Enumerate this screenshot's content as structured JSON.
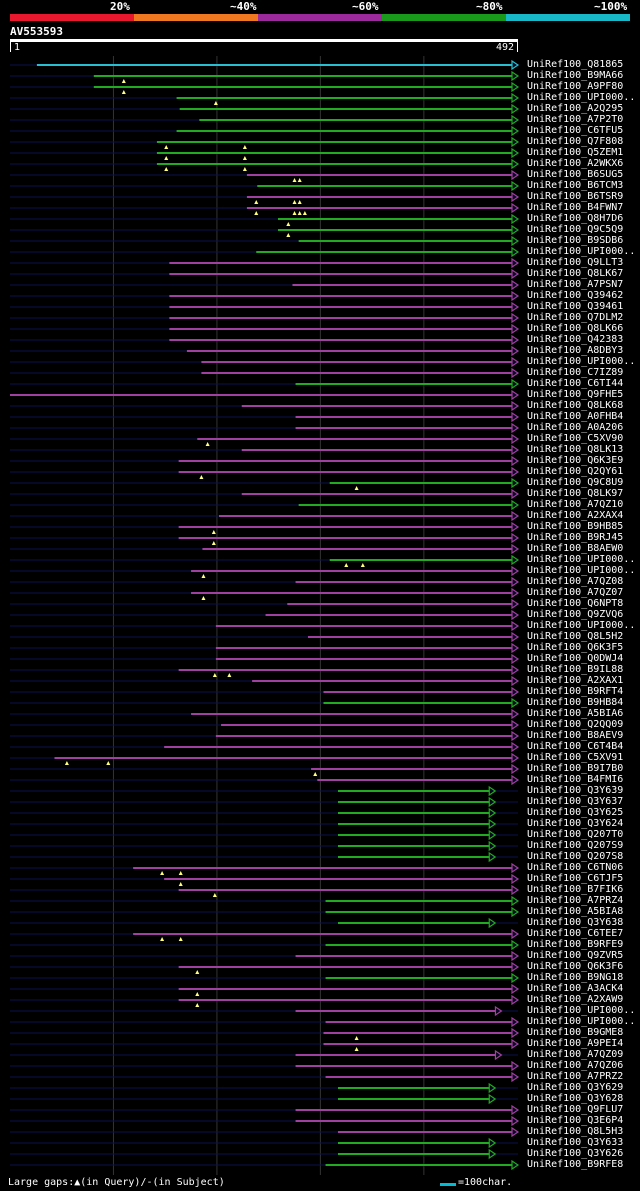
{
  "colors": {
    "background": "#000000",
    "legend": [
      "#e8182f",
      "#f07820",
      "#9c2a9c",
      "#1a9a1a",
      "#18b8c8"
    ],
    "purple": "#a040a0",
    "green": "#22aa22",
    "cyan": "#28c0d0",
    "navy": "#0c1050",
    "grid": "#333333"
  },
  "legend": {
    "labels": [
      "20%",
      "~40%",
      "~60%",
      "~80%",
      "~100%"
    ]
  },
  "query": {
    "id": "AV553593",
    "start": "1",
    "end": "492",
    "length": 492
  },
  "footer": {
    "text": "Large gaps:▲(in Query)/-(in Subject)",
    "scale_label": "=100char."
  },
  "hits": [
    {
      "name": "UniRef100_Q81865",
      "color": "cyan",
      "start": 27,
      "tri": []
    },
    {
      "name": "UniRef100_B9MA66",
      "color": "green",
      "start": 82,
      "tri": [
        111
      ]
    },
    {
      "name": "UniRef100_A9PF80",
      "color": "green",
      "start": 82,
      "tri": [
        111
      ]
    },
    {
      "name": "UniRef100_UPI000..",
      "color": "green",
      "start": 162,
      "tri": [
        200
      ]
    },
    {
      "name": "UniRef100_A2Q295",
      "color": "green",
      "start": 165,
      "tri": []
    },
    {
      "name": "UniRef100_A7P2T0",
      "color": "green",
      "start": 184,
      "tri": []
    },
    {
      "name": "UniRef100_C6TFU5",
      "color": "green",
      "start": 162,
      "tri": []
    },
    {
      "name": "UniRef100_Q7F808",
      "color": "green",
      "start": 143,
      "tri": [
        152,
        228
      ]
    },
    {
      "name": "UniRef100_Q5ZEM1",
      "color": "green",
      "start": 143,
      "tri": [
        152,
        228
      ]
    },
    {
      "name": "UniRef100_A2WKX6",
      "color": "green",
      "start": 143,
      "tri": [
        152,
        228
      ]
    },
    {
      "name": "UniRef100_B6SUG5",
      "color": "purple",
      "start": 230,
      "tri": [
        276,
        281
      ]
    },
    {
      "name": "UniRef100_B6TCM3",
      "color": "green",
      "start": 240,
      "tri": []
    },
    {
      "name": "UniRef100_B6TSR9",
      "color": "purple",
      "start": 230,
      "tri": [
        239,
        276,
        281
      ]
    },
    {
      "name": "UniRef100_B4FWN7",
      "color": "purple",
      "start": 230,
      "tri": [
        239,
        276,
        281,
        286
      ]
    },
    {
      "name": "UniRef100_Q8H7D6",
      "color": "green",
      "start": 260,
      "tri": [
        270
      ]
    },
    {
      "name": "UniRef100_Q9C5Q9",
      "color": "green",
      "start": 260,
      "tri": [
        270
      ]
    },
    {
      "name": "UniRef100_B9SDB6",
      "color": "green",
      "start": 280,
      "tri": []
    },
    {
      "name": "UniRef100_UPI000..",
      "color": "green",
      "start": 239,
      "tri": []
    },
    {
      "name": "UniRef100_Q9LLT3",
      "color": "purple",
      "start": 155,
      "tri": []
    },
    {
      "name": "UniRef100_Q8LK67",
      "color": "purple",
      "start": 155,
      "tri": []
    },
    {
      "name": "UniRef100_A7PSN7",
      "color": "purple",
      "start": 274,
      "tri": []
    },
    {
      "name": "UniRef100_Q39462",
      "color": "purple",
      "start": 155,
      "tri": []
    },
    {
      "name": "UniRef100_Q39461",
      "color": "purple",
      "start": 155,
      "tri": []
    },
    {
      "name": "UniRef100_Q7DLM2",
      "color": "purple",
      "start": 155,
      "tri": []
    },
    {
      "name": "UniRef100_Q8LK66",
      "color": "purple",
      "start": 155,
      "tri": []
    },
    {
      "name": "UniRef100_Q42383",
      "color": "purple",
      "start": 155,
      "tri": []
    },
    {
      "name": "UniRef100_A8DBY3",
      "color": "purple",
      "start": 172,
      "tri": []
    },
    {
      "name": "UniRef100_UPI000..",
      "color": "purple",
      "start": 186,
      "tri": []
    },
    {
      "name": "UniRef100_C7IZ89",
      "color": "purple",
      "start": 186,
      "tri": []
    },
    {
      "name": "UniRef100_C6TI44",
      "color": "green",
      "start": 277,
      "tri": []
    },
    {
      "name": "UniRef100_Q9FHE5",
      "color": "purple",
      "start": 1,
      "tri": []
    },
    {
      "name": "UniRef100_Q8LK68",
      "color": "purple",
      "start": 225,
      "tri": []
    },
    {
      "name": "UniRef100_A0FHB4",
      "color": "purple",
      "start": 277,
      "tri": []
    },
    {
      "name": "UniRef100_A0A206",
      "color": "purple",
      "start": 277,
      "tri": []
    },
    {
      "name": "UniRef100_C5XV90",
      "color": "purple",
      "start": 182,
      "tri": [
        192
      ]
    },
    {
      "name": "UniRef100_Q8LK13",
      "color": "purple",
      "start": 225,
      "tri": []
    },
    {
      "name": "UniRef100_Q6K3E9",
      "color": "purple",
      "start": 164,
      "tri": []
    },
    {
      "name": "UniRef100_Q2QY61",
      "color": "purple",
      "start": 164,
      "tri": [
        186
      ]
    },
    {
      "name": "UniRef100_Q9C8U9",
      "color": "green",
      "start": 310,
      "tri": [
        336
      ]
    },
    {
      "name": "UniRef100_Q8LK97",
      "color": "purple",
      "start": 225,
      "tri": []
    },
    {
      "name": "UniRef100_A7QZ10",
      "color": "green",
      "start": 280,
      "tri": []
    },
    {
      "name": "UniRef100_A2XAX4",
      "color": "purple",
      "start": 203,
      "tri": []
    },
    {
      "name": "UniRef100_B9HB85",
      "color": "purple",
      "start": 164,
      "tri": [
        198
      ]
    },
    {
      "name": "UniRef100_B9RJ45",
      "color": "purple",
      "start": 164,
      "tri": [
        198
      ]
    },
    {
      "name": "UniRef100_B8AEW0",
      "color": "purple",
      "start": 187,
      "tri": []
    },
    {
      "name": "UniRef100_UPI000..",
      "color": "green",
      "start": 310,
      "tri": [
        326,
        342
      ]
    },
    {
      "name": "UniRef100_UPI000..",
      "color": "purple",
      "start": 176,
      "tri": [
        188
      ]
    },
    {
      "name": "UniRef100_A7QZ08",
      "color": "purple",
      "start": 277,
      "tri": []
    },
    {
      "name": "UniRef100_A7QZ07",
      "color": "purple",
      "start": 176,
      "tri": [
        188
      ]
    },
    {
      "name": "UniRef100_Q6NPT8",
      "color": "purple",
      "start": 269,
      "tri": []
    },
    {
      "name": "UniRef100_Q9ZVQ6",
      "color": "purple",
      "start": 248,
      "tri": []
    },
    {
      "name": "UniRef100_UPI000..",
      "color": "purple",
      "start": 200,
      "tri": []
    },
    {
      "name": "UniRef100_Q8L5H2",
      "color": "purple",
      "start": 289,
      "tri": []
    },
    {
      "name": "UniRef100_Q6K3F5",
      "color": "purple",
      "start": 200,
      "tri": []
    },
    {
      "name": "UniRef100_Q0DWJ4",
      "color": "purple",
      "start": 200,
      "tri": []
    },
    {
      "name": "UniRef100_B9IL88",
      "color": "purple",
      "start": 164,
      "tri": [
        199,
        213
      ]
    },
    {
      "name": "UniRef100_A2XAX1",
      "color": "purple",
      "start": 235,
      "tri": []
    },
    {
      "name": "UniRef100_B9RFT4",
      "color": "purple",
      "start": 304,
      "tri": []
    },
    {
      "name": "UniRef100_B9HB84",
      "color": "green",
      "start": 304,
      "tri": []
    },
    {
      "name": "UniRef100_A5BIA6",
      "color": "purple",
      "start": 176,
      "tri": []
    },
    {
      "name": "UniRef100_Q2QQ09",
      "color": "purple",
      "start": 205,
      "tri": []
    },
    {
      "name": "UniRef100_B8AEV9",
      "color": "purple",
      "start": 200,
      "tri": []
    },
    {
      "name": "UniRef100_C6T4B4",
      "color": "purple",
      "start": 150,
      "tri": []
    },
    {
      "name": "UniRef100_C5XV91",
      "color": "purple",
      "start": 44,
      "tri": [
        56,
        96
      ]
    },
    {
      "name": "UniRef100_B9I7B0",
      "color": "purple",
      "start": 292,
      "tri": [
        296
      ]
    },
    {
      "name": "UniRef100_B4FMI6",
      "color": "purple",
      "start": 298,
      "tri": []
    },
    {
      "name": "UniRef100_Q3Y639",
      "color": "green",
      "start": 318,
      "tri": [],
      "end": 470
    },
    {
      "name": "UniRef100_Q3Y637",
      "color": "green",
      "start": 318,
      "tri": [],
      "end": 470
    },
    {
      "name": "UniRef100_Q3Y625",
      "color": "green",
      "start": 318,
      "tri": [],
      "end": 470
    },
    {
      "name": "UniRef100_Q3Y624",
      "color": "green",
      "start": 318,
      "tri": [],
      "end": 470
    },
    {
      "name": "UniRef100_Q207T0",
      "color": "green",
      "start": 318,
      "tri": [],
      "end": 470
    },
    {
      "name": "UniRef100_Q207S9",
      "color": "green",
      "start": 318,
      "tri": [],
      "end": 470
    },
    {
      "name": "UniRef100_Q207S8",
      "color": "green",
      "start": 318,
      "tri": [],
      "end": 470
    },
    {
      "name": "UniRef100_C6TN06",
      "color": "purple",
      "start": 120,
      "tri": [
        148,
        166
      ]
    },
    {
      "name": "UniRef100_C6TJF5",
      "color": "purple",
      "start": 150,
      "tri": [
        166
      ]
    },
    {
      "name": "UniRef100_B7FIK6",
      "color": "purple",
      "start": 164,
      "tri": [
        199
      ]
    },
    {
      "name": "UniRef100_A7PRZ4",
      "color": "green",
      "start": 306,
      "tri": []
    },
    {
      "name": "UniRef100_A5BIA8",
      "color": "green",
      "start": 306,
      "tri": []
    },
    {
      "name": "UniRef100_Q3Y638",
      "color": "green",
      "start": 318,
      "tri": [],
      "end": 470
    },
    {
      "name": "UniRef100_C6TEE7",
      "color": "purple",
      "start": 120,
      "tri": [
        148,
        166
      ]
    },
    {
      "name": "UniRef100_B9RFE9",
      "color": "green",
      "start": 306,
      "tri": []
    },
    {
      "name": "UniRef100_Q9ZVR5",
      "color": "purple",
      "start": 277,
      "tri": []
    },
    {
      "name": "UniRef100_Q6K3F6",
      "color": "purple",
      "start": 164,
      "tri": [
        182
      ]
    },
    {
      "name": "UniRef100_B9NG18",
      "color": "green",
      "start": 306,
      "tri": []
    },
    {
      "name": "UniRef100_A3ACK4",
      "color": "purple",
      "start": 164,
      "tri": [
        182
      ]
    },
    {
      "name": "UniRef100_A2XAW9",
      "color": "purple",
      "start": 164,
      "tri": [
        182
      ]
    },
    {
      "name": "UniRef100_UPI000..",
      "color": "purple",
      "start": 277,
      "tri": [],
      "end": 476
    },
    {
      "name": "UniRef100_UPI000..",
      "color": "purple",
      "start": 306,
      "tri": []
    },
    {
      "name": "UniRef100_B9GME8",
      "color": "purple",
      "start": 304,
      "tri": [
        336
      ]
    },
    {
      "name": "UniRef100_A9PEI4",
      "color": "purple",
      "start": 304,
      "tri": [
        336
      ]
    },
    {
      "name": "UniRef100_A7QZ09",
      "color": "purple",
      "start": 277,
      "tri": [],
      "end": 476
    },
    {
      "name": "UniRef100_A7QZ06",
      "color": "purple",
      "start": 277,
      "tri": []
    },
    {
      "name": "UniRef100_A7PRZ2",
      "color": "purple",
      "start": 306,
      "tri": []
    },
    {
      "name": "UniRef100_Q3Y629",
      "color": "green",
      "start": 318,
      "tri": [],
      "end": 470
    },
    {
      "name": "UniRef100_Q3Y628",
      "color": "green",
      "start": 318,
      "tri": [],
      "end": 470
    },
    {
      "name": "UniRef100_Q9FLU7",
      "color": "purple",
      "start": 277,
      "tri": []
    },
    {
      "name": "UniRef100_Q3E6P4",
      "color": "purple",
      "start": 277,
      "tri": []
    },
    {
      "name": "UniRef100_Q8L5H3",
      "color": "purple",
      "start": 318,
      "tri": []
    },
    {
      "name": "UniRef100_Q3Y633",
      "color": "green",
      "start": 318,
      "tri": [],
      "end": 470
    },
    {
      "name": "UniRef100_Q3Y626",
      "color": "green",
      "start": 318,
      "tri": [],
      "end": 470
    },
    {
      "name": "UniRef100_B9RFE8",
      "color": "green",
      "start": 306,
      "tri": []
    }
  ]
}
